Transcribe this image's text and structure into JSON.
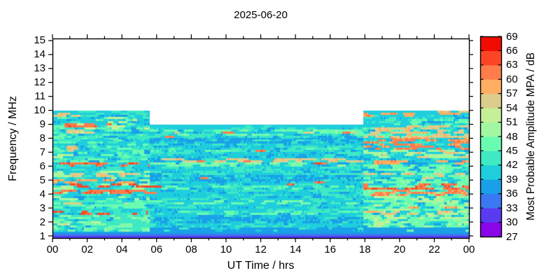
{
  "title": "2025-06-20",
  "x_axis": {
    "label": "UT Time / hrs",
    "range_hours": [
      0,
      24
    ],
    "major_tick_hours": [
      0,
      2,
      4,
      6,
      8,
      10,
      12,
      14,
      16,
      18,
      20,
      22,
      24
    ],
    "major_tick_labels": [
      "00",
      "02",
      "04",
      "06",
      "08",
      "10",
      "12",
      "14",
      "16",
      "18",
      "20",
      "22",
      "00"
    ],
    "minor_tick_hours": [
      1,
      3,
      5,
      7,
      9,
      11,
      13,
      15,
      17,
      19,
      21,
      23
    ]
  },
  "y_axis": {
    "label": "Frequency / MHz",
    "range_mhz": [
      0.85,
      15.15
    ],
    "tick_values": [
      1,
      2,
      3,
      4,
      5,
      6,
      7,
      8,
      9,
      10,
      11,
      12,
      13,
      14,
      15
    ]
  },
  "colorbar": {
    "label": "Most Probable Amplitude MPA / dB",
    "tick_values": [
      27,
      30,
      33,
      36,
      39,
      42,
      45,
      48,
      51,
      54,
      57,
      60,
      63,
      66,
      69
    ],
    "band_min_db": 27,
    "band_step_db": 3,
    "palette_low_to_high": [
      "#8A05E8",
      "#5A3BF2",
      "#3C78F2",
      "#19A0E8",
      "#1FCEDC",
      "#3EE9C4",
      "#69FCB1",
      "#A2F8A0",
      "#C5F098",
      "#DBCE8D",
      "#FFAE63",
      "#FF7D4B",
      "#FC4527",
      "#F00C00"
    ]
  },
  "chart_data": {
    "type": "heatmap",
    "title": "2025-06-20",
    "xlabel": "UT Time / hrs",
    "ylabel": "Frequency / MHz",
    "zlabel": "Most Probable Amplitude MPA / dB",
    "x_range_hours": [
      0,
      24
    ],
    "y_range_mhz": [
      0.85,
      15.15
    ],
    "value_range_db": [
      27,
      69
    ],
    "grid": false,
    "seed": 20250620,
    "cell": {
      "t_step_hours": 0.1,
      "f_step_mhz": 0.15
    },
    "envelope_max_freq_mhz": [
      {
        "t0": 0,
        "t1": 5.6,
        "f": 10.0
      },
      {
        "t0": 5.6,
        "t1": 17.9,
        "f": 9.0
      },
      {
        "t0": 17.9,
        "t1": 24,
        "f": 10.0
      }
    ],
    "cap_band": {
      "depth_mhz": 0.25,
      "value_db": 39.5
    },
    "background": {
      "base_db": 40.6,
      "noise_db": 2.2,
      "run_cols": [
        3,
        9
      ]
    },
    "solid_band_fields": [
      "f_lo_mhz",
      "f_hi_mhz",
      "t_lo_hr",
      "t_hi_hr",
      "value_db"
    ],
    "solid_bands": [
      [
        0.85,
        1.0,
        0,
        24,
        32
      ],
      [
        1.0,
        1.15,
        0,
        24,
        35
      ],
      [
        1.15,
        1.3,
        0,
        24,
        37.5
      ]
    ],
    "stripe_fields": [
      "f_lo_mhz",
      "f_hi_mhz",
      "t_lo_hr",
      "t_hi_hr",
      "value_db",
      "density",
      "mode"
    ],
    "stripes": [
      [
        9.55,
        9.8,
        0,
        1.7,
        56,
        0.45,
        "max"
      ],
      [
        8.85,
        9.15,
        0,
        4.6,
        62,
        0.5,
        "max"
      ],
      [
        8.3,
        8.6,
        0.8,
        2.4,
        55,
        0.35,
        "max"
      ],
      [
        7.0,
        7.45,
        0,
        2.0,
        56,
        0.3,
        "max"
      ],
      [
        6.55,
        6.8,
        0,
        1.2,
        52,
        0.35,
        "max"
      ],
      [
        5.95,
        6.2,
        0,
        5.6,
        62,
        0.55,
        "max"
      ],
      [
        5.2,
        5.5,
        0,
        5.0,
        56,
        0.45,
        "max"
      ],
      [
        4.75,
        5.0,
        0,
        5.3,
        59,
        0.4,
        "max"
      ],
      [
        4.45,
        4.7,
        0,
        6.3,
        64,
        0.55,
        "max"
      ],
      [
        3.95,
        4.25,
        0,
        6.0,
        62,
        0.5,
        "max"
      ],
      [
        3.2,
        3.45,
        0,
        4.3,
        56,
        0.4,
        "max"
      ],
      [
        2.5,
        2.8,
        0,
        5.5,
        64,
        0.55,
        "max"
      ],
      [
        1.3,
        2.45,
        0,
        5.6,
        47.5,
        0.4,
        "max"
      ],
      [
        1.6,
        2.1,
        0,
        3.0,
        53,
        0.15,
        "max"
      ],
      [
        2.95,
        3.7,
        0,
        5.6,
        46.5,
        0.35,
        "max"
      ],
      [
        3.5,
        5.6,
        0,
        5.6,
        50,
        0.25,
        "max"
      ],
      [
        6.2,
        9.5,
        0,
        5.6,
        46,
        0.25,
        "max"
      ],
      [
        8.6,
        9.5,
        0,
        5.6,
        52,
        0.2,
        "max"
      ],
      [
        1.3,
        10,
        0,
        5.6,
        43.5,
        0.25,
        "max"
      ],
      [
        6.3,
        6.5,
        5.6,
        17.9,
        56,
        0.5,
        "max"
      ],
      [
        6.3,
        6.45,
        8,
        17.9,
        62,
        0.06,
        "max"
      ],
      [
        5.95,
        6.25,
        5.6,
        17.9,
        47.5,
        0.5,
        "max"
      ],
      [
        8.2,
        8.7,
        5.6,
        17.9,
        47,
        0.35,
        "max"
      ],
      [
        8.35,
        8.6,
        6.5,
        17.5,
        55,
        0.1,
        "max"
      ],
      [
        4.3,
        4.55,
        5.6,
        17.9,
        46,
        0.35,
        "max"
      ],
      [
        3.25,
        3.5,
        5.6,
        17.9,
        47,
        0.3,
        "max"
      ],
      [
        2.55,
        2.85,
        5.6,
        17.9,
        46,
        0.3,
        "max"
      ],
      [
        7.0,
        7.35,
        5.6,
        17.9,
        45,
        0.3,
        "max"
      ],
      [
        3.5,
        9.0,
        6.5,
        17.5,
        62,
        0.01,
        "max"
      ],
      [
        1.3,
        9.0,
        5.6,
        17.9,
        43.5,
        0.18,
        "max"
      ],
      [
        1.3,
        2.6,
        2.8,
        5.6,
        43.5,
        0.8,
        "max"
      ],
      [
        9.5,
        9.8,
        17.9,
        24,
        59,
        0.45,
        "max"
      ],
      [
        9.8,
        10.0,
        21.3,
        24,
        56,
        0.45,
        "max"
      ],
      [
        8.05,
        8.95,
        17.9,
        24,
        56,
        0.45,
        "max"
      ],
      [
        7.2,
        8.0,
        17.9,
        24,
        60.5,
        0.45,
        "max"
      ],
      [
        6.55,
        7.15,
        17.9,
        24,
        50,
        0.5,
        "max"
      ],
      [
        6.6,
        7.1,
        19,
        24,
        56,
        0.2,
        "max"
      ],
      [
        6.1,
        6.45,
        17.9,
        24,
        59,
        0.5,
        "max"
      ],
      [
        5.1,
        5.45,
        17.9,
        24,
        56,
        0.35,
        "max"
      ],
      [
        4.35,
        4.8,
        17.9,
        24,
        62.5,
        0.5,
        "max"
      ],
      [
        3.9,
        4.3,
        17.9,
        24,
        60.5,
        0.45,
        "max"
      ],
      [
        2.9,
        3.15,
        17.9,
        24,
        59,
        0.4,
        "max"
      ],
      [
        2.45,
        2.75,
        17.9,
        24,
        56,
        0.35,
        "max"
      ],
      [
        1.3,
        6.1,
        17.9,
        24,
        47,
        0.5,
        "max"
      ],
      [
        1.6,
        3.8,
        18.5,
        24,
        51,
        0.25,
        "max"
      ],
      [
        8.0,
        9.45,
        17.9,
        24,
        46,
        0.3,
        "max"
      ],
      [
        7.55,
        8.0,
        5.6,
        17.9,
        38.5,
        0.65,
        "min"
      ],
      [
        4.9,
        5.3,
        5.6,
        17.9,
        38.5,
        0.6,
        "min"
      ],
      [
        1.95,
        2.35,
        5.6,
        17.9,
        38.5,
        0.55,
        "min"
      ],
      [
        1.3,
        1.65,
        5.6,
        17.9,
        38,
        0.6,
        "min"
      ],
      [
        6.6,
        6.9,
        5.6,
        17.9,
        39.5,
        0.4,
        "min"
      ],
      [
        1.0,
        1.65,
        17.9,
        24,
        37.5,
        0.8,
        "min"
      ]
    ]
  }
}
